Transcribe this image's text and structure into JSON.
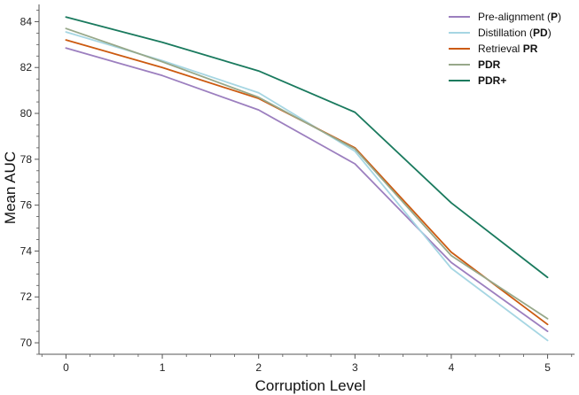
{
  "chart_data": {
    "type": "line",
    "title": "",
    "xlabel": "Corruption Level",
    "ylabel": "Mean AUC",
    "x": [
      0,
      1,
      2,
      3,
      4,
      5
    ],
    "xlim": [
      -0.28,
      5.28
    ],
    "ylim": [
      69.5,
      84.75
    ],
    "xticks": [
      0,
      1,
      2,
      3,
      4,
      5
    ],
    "yticks": [
      70,
      72,
      74,
      76,
      78,
      80,
      82,
      84
    ],
    "grid": false,
    "legend_position": "top-right",
    "series": [
      {
        "name": "Pre-alignment (P)",
        "label_plain": "Pre-alignment (",
        "label_bold": "P",
        "label_tail": ")",
        "color": "#9c7fbf",
        "values": [
          82.85,
          81.65,
          80.15,
          77.8,
          73.5,
          70.5
        ]
      },
      {
        "name": "Distillation (PD)",
        "label_plain": "Distillation (",
        "label_bold": "PD",
        "label_tail": ")",
        "color": "#a6d6e3",
        "values": [
          83.55,
          82.3,
          80.9,
          78.35,
          73.25,
          70.1
        ]
      },
      {
        "name": "Retrieval PR",
        "label_plain": "Retrieval ",
        "label_bold": "PR",
        "label_tail": "",
        "color": "#cc5a10",
        "values": [
          83.2,
          82.0,
          80.65,
          78.5,
          73.95,
          70.8
        ]
      },
      {
        "name": "PDR",
        "label_plain": "",
        "label_bold": "PDR",
        "label_tail": "",
        "color": "#97a88a",
        "values": [
          83.7,
          82.25,
          80.7,
          78.45,
          73.8,
          71.05
        ]
      },
      {
        "name": "PDR+",
        "label_plain": "",
        "label_bold": "PDR+",
        "label_tail": "",
        "color": "#1a7a5e",
        "values": [
          84.2,
          83.1,
          81.85,
          80.05,
          76.1,
          72.85
        ]
      }
    ]
  }
}
